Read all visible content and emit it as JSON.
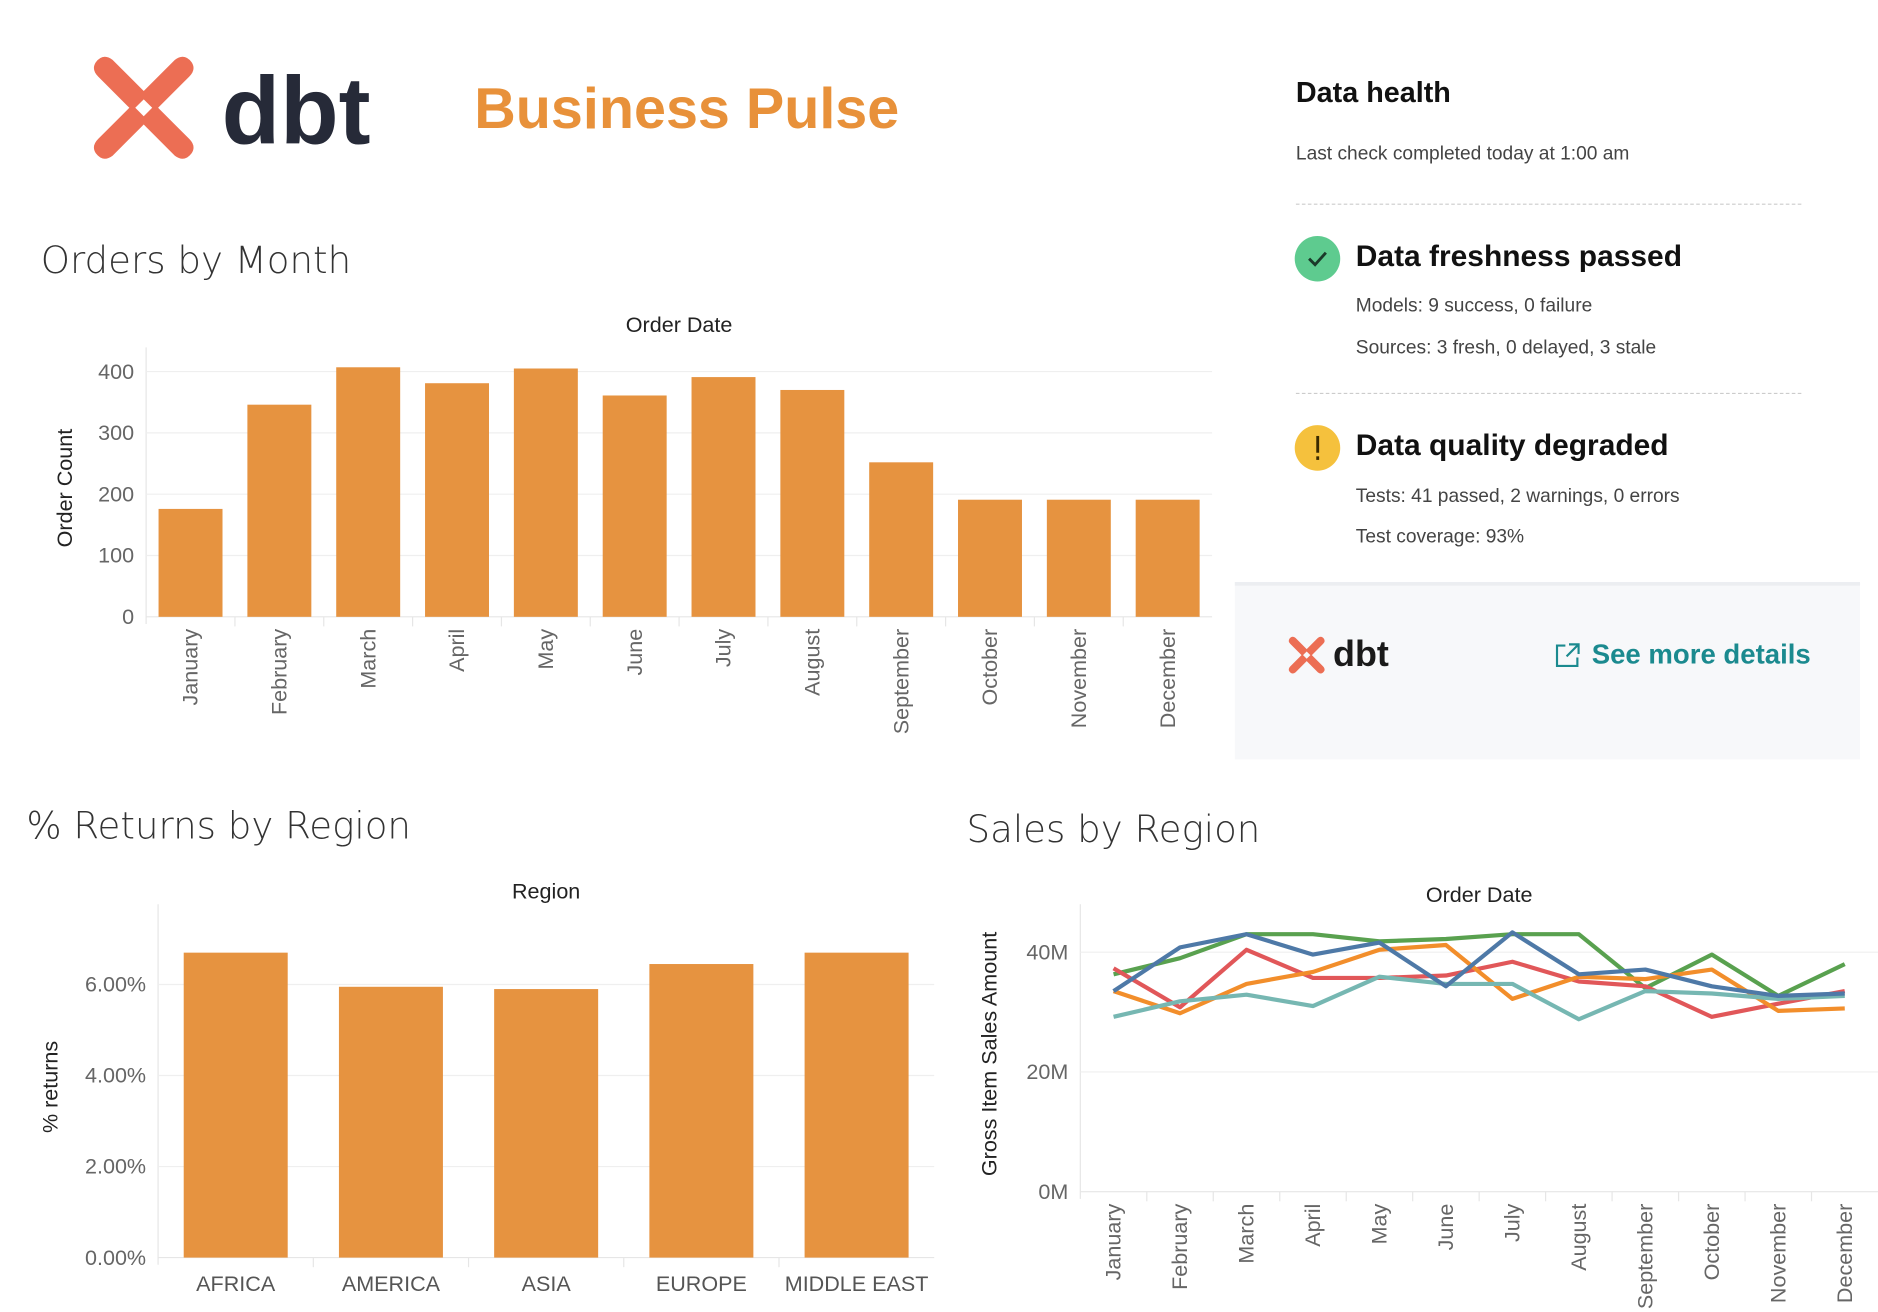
{
  "header": {
    "logo_text": "dbt",
    "title": "Business Pulse"
  },
  "health": {
    "title": "Data health",
    "last_check": "Last check completed today at 1:00 am",
    "freshness": {
      "icon": "check-circle-icon",
      "color": "#5ecb8f",
      "title": "Data freshness passed",
      "lines": [
        "Models: 9 success, 0 failure",
        "Sources: 3 fresh, 0 delayed, 3 stale"
      ]
    },
    "quality": {
      "icon": "warning-circle-icon",
      "color": "#f5c13d",
      "title": "Data quality degraded",
      "lines": [
        "Tests: 41 passed, 2 warnings, 0 errors",
        "Test coverage: 93%"
      ]
    },
    "footer": {
      "logo_text": "dbt",
      "link_icon": "external-link-icon",
      "link_label": "See more details",
      "link_color": "#1b8a8f"
    }
  },
  "chart_data": [
    {
      "id": "orders",
      "type": "bar",
      "title": "Orders by Month",
      "column_header": "Order Date",
      "ylabel": "Order Count",
      "ylim": [
        0,
        420
      ],
      "yticks": [
        "0",
        "100",
        "200",
        "300",
        "400"
      ],
      "categories": [
        "January",
        "February",
        "March",
        "April",
        "May",
        "June",
        "July",
        "August",
        "September",
        "October",
        "November",
        "December"
      ],
      "values": [
        176,
        346,
        407,
        381,
        405,
        361,
        391,
        370,
        252,
        191,
        191,
        191
      ],
      "color": "#e69340",
      "grid": true
    },
    {
      "id": "returns",
      "type": "bar",
      "title": "% Returns by Region",
      "column_header": "Region",
      "ylabel": "% returns",
      "ylim": [
        0,
        7.5
      ],
      "yticks": [
        "0.00%",
        "2.00%",
        "4.00%",
        "6.00%"
      ],
      "categories": [
        "AFRICA",
        "AMERICA",
        "ASIA",
        "EUROPE",
        "MIDDLE EAST"
      ],
      "values": [
        6.7,
        5.95,
        5.9,
        6.45,
        6.7
      ],
      "color": "#e69340",
      "grid": true
    },
    {
      "id": "sales",
      "type": "line",
      "title": "Sales by Region",
      "column_header": "Order Date",
      "ylabel": "Gross Item Sales Amount",
      "ylim": [
        0,
        46
      ],
      "yticks": [
        "0M",
        "20M",
        "40M"
      ],
      "categories": [
        "January",
        "February",
        "March",
        "April",
        "May",
        "June",
        "July",
        "August",
        "September",
        "October",
        "November",
        "December"
      ],
      "series": [
        {
          "color": "#59a14f",
          "values": [
            36.3,
            39.0,
            43.0,
            43.0,
            41.8,
            42.2,
            43.0,
            43.0,
            34.0,
            39.6,
            32.7,
            38.0
          ]
        },
        {
          "color": "#e15759",
          "values": [
            37.3,
            30.8,
            40.4,
            35.7,
            35.7,
            36.1,
            38.4,
            35.1,
            34.3,
            29.2,
            31.4,
            33.5
          ]
        },
        {
          "color": "#f28e2b",
          "values": [
            33.5,
            29.8,
            34.7,
            36.7,
            40.4,
            41.2,
            32.2,
            35.9,
            35.5,
            37.1,
            30.2,
            30.6
          ]
        },
        {
          "color": "#76b7b2",
          "values": [
            29.2,
            31.8,
            32.9,
            31.0,
            35.9,
            34.7,
            34.7,
            28.8,
            33.5,
            33.1,
            32.2,
            32.7
          ]
        },
        {
          "color": "#4e79a7",
          "values": [
            33.5,
            40.8,
            43.0,
            39.6,
            41.6,
            34.3,
            43.3,
            36.3,
            37.1,
            34.3,
            32.7,
            33.1
          ]
        }
      ],
      "grid": true
    }
  ]
}
